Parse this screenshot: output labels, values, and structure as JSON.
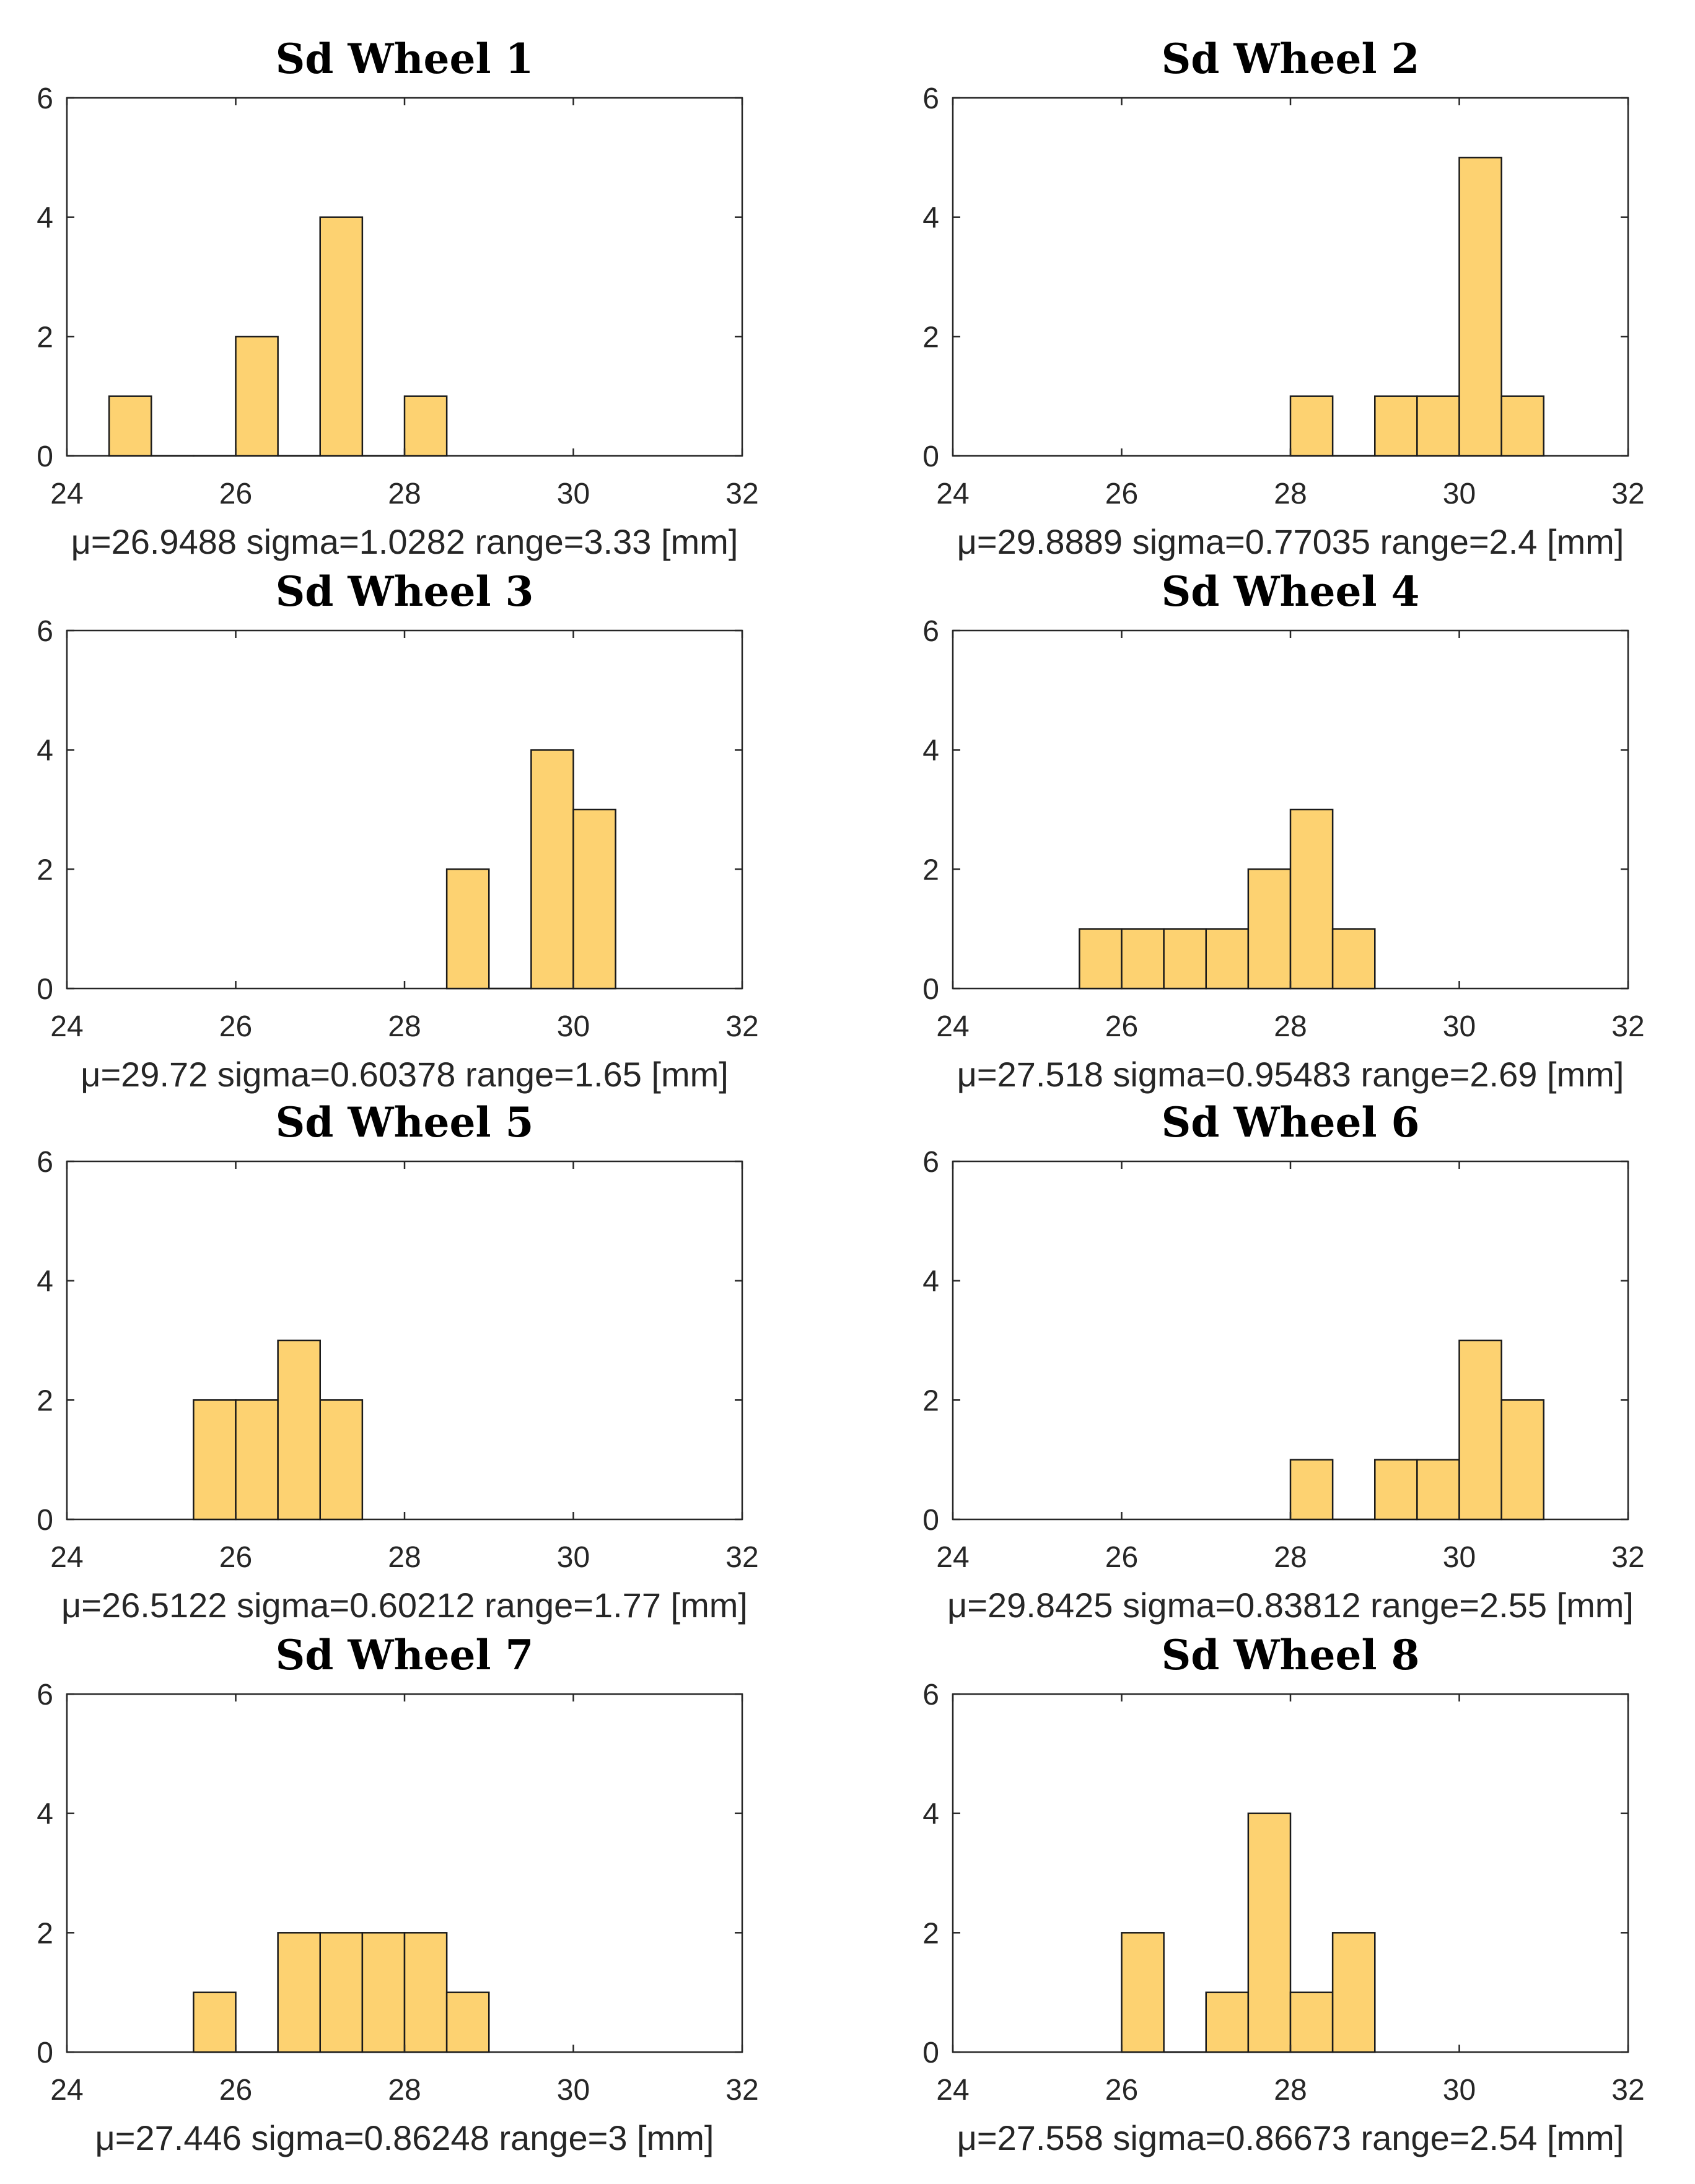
{
  "chart_data": [
    {
      "type": "bar",
      "title": "Sd Wheel 1",
      "xlabel": "μ=26.9488  sigma=1.0282  range=3.33 [mm]",
      "ylabel": "",
      "xlim": [
        24,
        32
      ],
      "ylim": [
        0,
        6
      ],
      "xticks": [
        24,
        26,
        28,
        30,
        32
      ],
      "yticks": [
        0,
        2,
        4,
        6
      ],
      "bin_width": 0.5,
      "bin_starts": [
        24.5,
        25,
        25.5,
        26,
        26.5,
        27,
        27.5,
        28
      ],
      "values": [
        1,
        0,
        0,
        2,
        0,
        4,
        0,
        1
      ]
    },
    {
      "type": "bar",
      "title": "Sd Wheel 2",
      "xlabel": "μ=29.8889  sigma=0.77035  range=2.4 [mm]",
      "ylabel": "",
      "xlim": [
        24,
        32
      ],
      "ylim": [
        0,
        6
      ],
      "xticks": [
        24,
        26,
        28,
        30,
        32
      ],
      "yticks": [
        0,
        2,
        4,
        6
      ],
      "bin_width": 0.5,
      "bin_starts": [
        28,
        28.5,
        29,
        29.5,
        30,
        30.5
      ],
      "values": [
        1,
        0,
        1,
        1,
        5,
        1
      ]
    },
    {
      "type": "bar",
      "title": "Sd Wheel 3",
      "xlabel": "μ=29.72  sigma=0.60378  range=1.65 [mm]",
      "ylabel": "",
      "xlim": [
        24,
        32
      ],
      "ylim": [
        0,
        6
      ],
      "xticks": [
        24,
        26,
        28,
        30,
        32
      ],
      "yticks": [
        0,
        2,
        4,
        6
      ],
      "bin_width": 0.5,
      "bin_starts": [
        28.5,
        29,
        29.5,
        30
      ],
      "values": [
        2,
        0,
        4,
        3
      ]
    },
    {
      "type": "bar",
      "title": "Sd Wheel 4",
      "xlabel": "μ=27.518  sigma=0.95483  range=2.69 [mm]",
      "ylabel": "",
      "xlim": [
        24,
        32
      ],
      "ylim": [
        0,
        6
      ],
      "xticks": [
        24,
        26,
        28,
        30,
        32
      ],
      "yticks": [
        0,
        2,
        4,
        6
      ],
      "bin_width": 0.5,
      "bin_starts": [
        25.5,
        26,
        26.5,
        27,
        27.5,
        28,
        28.5
      ],
      "values": [
        1,
        1,
        1,
        1,
        2,
        3,
        1
      ]
    },
    {
      "type": "bar",
      "title": "Sd Wheel 5",
      "xlabel": "μ=26.5122  sigma=0.60212  range=1.77 [mm]",
      "ylabel": "",
      "xlim": [
        24,
        32
      ],
      "ylim": [
        0,
        6
      ],
      "xticks": [
        24,
        26,
        28,
        30,
        32
      ],
      "yticks": [
        0,
        2,
        4,
        6
      ],
      "bin_width": 0.5,
      "bin_starts": [
        25.5,
        26,
        26.5,
        27
      ],
      "values": [
        2,
        2,
        3,
        2
      ]
    },
    {
      "type": "bar",
      "title": "Sd Wheel 6",
      "xlabel": "μ=29.8425  sigma=0.83812  range=2.55 [mm]",
      "ylabel": "",
      "xlim": [
        24,
        32
      ],
      "ylim": [
        0,
        6
      ],
      "xticks": [
        24,
        26,
        28,
        30,
        32
      ],
      "yticks": [
        0,
        2,
        4,
        6
      ],
      "bin_width": 0.5,
      "bin_starts": [
        28,
        28.5,
        29,
        29.5,
        30,
        30.5
      ],
      "values": [
        1,
        0,
        1,
        1,
        3,
        2
      ]
    },
    {
      "type": "bar",
      "title": "Sd Wheel 7",
      "xlabel": "μ=27.446  sigma=0.86248  range=3 [mm]",
      "ylabel": "",
      "xlim": [
        24,
        32
      ],
      "ylim": [
        0,
        6
      ],
      "xticks": [
        24,
        26,
        28,
        30,
        32
      ],
      "yticks": [
        0,
        2,
        4,
        6
      ],
      "bin_width": 0.5,
      "bin_starts": [
        25.5,
        26,
        26.5,
        27,
        27.5,
        28,
        28.5
      ],
      "values": [
        1,
        0,
        2,
        2,
        2,
        2,
        1
      ]
    },
    {
      "type": "bar",
      "title": "Sd Wheel 8",
      "xlabel": "μ=27.558  sigma=0.86673  range=2.54 [mm]",
      "ylabel": "",
      "xlim": [
        24,
        32
      ],
      "ylim": [
        0,
        6
      ],
      "xticks": [
        24,
        26,
        28,
        30,
        32
      ],
      "yticks": [
        0,
        2,
        4,
        6
      ],
      "bin_width": 0.5,
      "bin_starts": [
        26,
        26.5,
        27,
        27.5,
        28,
        28.5
      ],
      "values": [
        2,
        0,
        1,
        4,
        1,
        2
      ]
    }
  ],
  "colors": {
    "bar_fill": "#FDD271",
    "bar_edge": "#1a1a1a",
    "axis": "#262626"
  }
}
